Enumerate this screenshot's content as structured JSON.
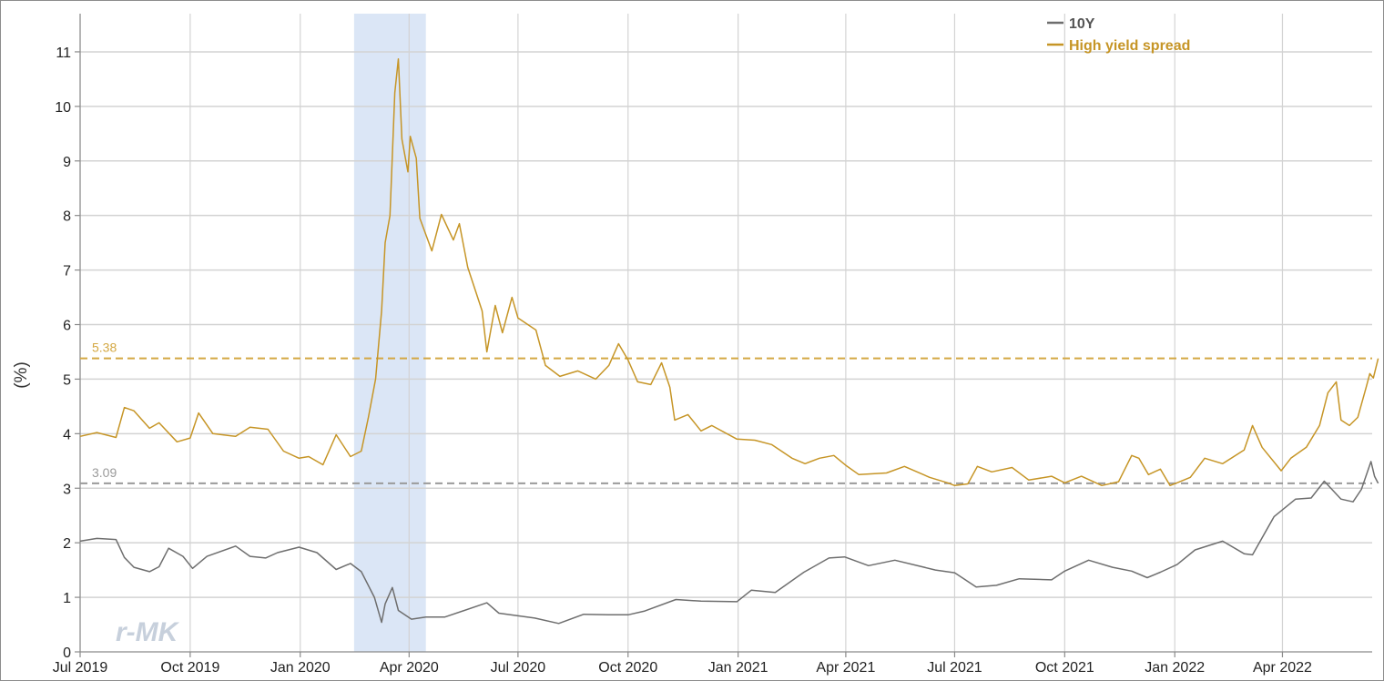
{
  "chart_data": {
    "type": "line",
    "title": "",
    "xlabel": "",
    "ylabel": "(%)",
    "ylim": [
      0,
      11.7
    ],
    "y_ticks": [
      0,
      1,
      2,
      3,
      4,
      5,
      6,
      7,
      8,
      9,
      10,
      11
    ],
    "x_range": [
      "2019-07-01",
      "2022-06-15"
    ],
    "x_ticks": [
      {
        "date": "2019-07-01",
        "label": "Jul 2019"
      },
      {
        "date": "2019-10-01",
        "label": "Oct 2019"
      },
      {
        "date": "2020-01-01",
        "label": "Jan 2020"
      },
      {
        "date": "2020-04-01",
        "label": "Apr 2020"
      },
      {
        "date": "2020-07-01",
        "label": "Jul 2020"
      },
      {
        "date": "2020-10-01",
        "label": "Oct 2020"
      },
      {
        "date": "2021-01-01",
        "label": "Jan 2021"
      },
      {
        "date": "2021-04-01",
        "label": "Apr 2021"
      },
      {
        "date": "2021-07-01",
        "label": "Jul 2021"
      },
      {
        "date": "2021-10-01",
        "label": "Oct 2021"
      },
      {
        "date": "2022-01-01",
        "label": "Jan 2022"
      },
      {
        "date": "2022-04-01",
        "label": "Apr 2022"
      }
    ],
    "grid": true,
    "legend_position": "top-right",
    "recession_band": {
      "start": "2020-02-15",
      "end": "2020-04-15",
      "color": "#dbe6f6"
    },
    "reference_lines": [
      {
        "value": 5.38,
        "label": "5.38",
        "color": "#d4a843"
      },
      {
        "value": 3.09,
        "label": "3.09",
        "color": "#9a9a9a"
      }
    ],
    "series": [
      {
        "name": "10Y",
        "color": "#6e6e6e",
        "points": [
          [
            "2019-07-01",
            2.03
          ],
          [
            "2019-07-15",
            2.08
          ],
          [
            "2019-07-31",
            2.06
          ],
          [
            "2019-08-07",
            1.73
          ],
          [
            "2019-08-15",
            1.55
          ],
          [
            "2019-08-28",
            1.47
          ],
          [
            "2019-09-05",
            1.56
          ],
          [
            "2019-09-13",
            1.9
          ],
          [
            "2019-09-25",
            1.75
          ],
          [
            "2019-10-03",
            1.53
          ],
          [
            "2019-10-15",
            1.75
          ],
          [
            "2019-11-08",
            1.94
          ],
          [
            "2019-11-20",
            1.75
          ],
          [
            "2019-12-03",
            1.72
          ],
          [
            "2019-12-13",
            1.82
          ],
          [
            "2019-12-31",
            1.92
          ],
          [
            "2020-01-15",
            1.82
          ],
          [
            "2020-01-31",
            1.51
          ],
          [
            "2020-02-12",
            1.62
          ],
          [
            "2020-02-21",
            1.47
          ],
          [
            "2020-03-03",
            1.0
          ],
          [
            "2020-03-09",
            0.54
          ],
          [
            "2020-03-12",
            0.88
          ],
          [
            "2020-03-18",
            1.18
          ],
          [
            "2020-03-23",
            0.76
          ],
          [
            "2020-04-03",
            0.6
          ],
          [
            "2020-04-15",
            0.64
          ],
          [
            "2020-05-01",
            0.64
          ],
          [
            "2020-06-05",
            0.9
          ],
          [
            "2020-06-15",
            0.71
          ],
          [
            "2020-07-15",
            0.62
          ],
          [
            "2020-08-04",
            0.52
          ],
          [
            "2020-08-25",
            0.69
          ],
          [
            "2020-09-15",
            0.68
          ],
          [
            "2020-10-01",
            0.68
          ],
          [
            "2020-10-15",
            0.75
          ],
          [
            "2020-11-10",
            0.96
          ],
          [
            "2020-12-01",
            0.93
          ],
          [
            "2020-12-31",
            0.92
          ],
          [
            "2021-01-12",
            1.13
          ],
          [
            "2021-02-01",
            1.09
          ],
          [
            "2021-02-25",
            1.46
          ],
          [
            "2021-03-18",
            1.72
          ],
          [
            "2021-03-31",
            1.74
          ],
          [
            "2021-04-20",
            1.58
          ],
          [
            "2021-05-12",
            1.68
          ],
          [
            "2021-06-15",
            1.5
          ],
          [
            "2021-07-01",
            1.45
          ],
          [
            "2021-07-19",
            1.19
          ],
          [
            "2021-08-05",
            1.22
          ],
          [
            "2021-08-24",
            1.34
          ],
          [
            "2021-09-20",
            1.32
          ],
          [
            "2021-10-01",
            1.48
          ],
          [
            "2021-10-21",
            1.68
          ],
          [
            "2021-11-10",
            1.55
          ],
          [
            "2021-11-26",
            1.48
          ],
          [
            "2021-12-09",
            1.36
          ],
          [
            "2021-12-20",
            1.46
          ],
          [
            "2022-01-03",
            1.6
          ],
          [
            "2022-01-18",
            1.87
          ],
          [
            "2022-02-10",
            2.03
          ],
          [
            "2022-02-28",
            1.8
          ],
          [
            "2022-03-07",
            1.78
          ],
          [
            "2022-03-25",
            2.48
          ],
          [
            "2022-04-12",
            2.8
          ],
          [
            "2022-04-25",
            2.82
          ],
          [
            "2022-05-06",
            3.13
          ],
          [
            "2022-05-20",
            2.8
          ],
          [
            "2022-05-30",
            2.75
          ],
          [
            "2022-06-06",
            2.98
          ],
          [
            "2022-06-14",
            3.49
          ],
          [
            "2022-06-17",
            3.22
          ],
          [
            "2022-06-20",
            3.09
          ]
        ]
      },
      {
        "name": "High yield spread",
        "color": "#c69526",
        "points": [
          [
            "2019-07-01",
            3.95
          ],
          [
            "2019-07-15",
            4.02
          ],
          [
            "2019-07-31",
            3.93
          ],
          [
            "2019-08-07",
            4.48
          ],
          [
            "2019-08-15",
            4.42
          ],
          [
            "2019-08-28",
            4.1
          ],
          [
            "2019-09-05",
            4.2
          ],
          [
            "2019-09-20",
            3.85
          ],
          [
            "2019-10-01",
            3.92
          ],
          [
            "2019-10-08",
            4.38
          ],
          [
            "2019-10-20",
            4.0
          ],
          [
            "2019-11-08",
            3.95
          ],
          [
            "2019-11-20",
            4.12
          ],
          [
            "2019-12-05",
            4.08
          ],
          [
            "2019-12-18",
            3.68
          ],
          [
            "2019-12-31",
            3.55
          ],
          [
            "2020-01-08",
            3.58
          ],
          [
            "2020-01-20",
            3.43
          ],
          [
            "2020-01-31",
            3.98
          ],
          [
            "2020-02-12",
            3.58
          ],
          [
            "2020-02-21",
            3.68
          ],
          [
            "2020-02-27",
            4.3
          ],
          [
            "2020-03-04",
            5.0
          ],
          [
            "2020-03-09",
            6.25
          ],
          [
            "2020-03-12",
            7.5
          ],
          [
            "2020-03-16",
            8.0
          ],
          [
            "2020-03-20",
            10.25
          ],
          [
            "2020-03-23",
            10.87
          ],
          [
            "2020-03-26",
            9.4
          ],
          [
            "2020-03-31",
            8.8
          ],
          [
            "2020-04-02",
            9.45
          ],
          [
            "2020-04-07",
            9.05
          ],
          [
            "2020-04-10",
            7.95
          ],
          [
            "2020-04-20",
            7.35
          ],
          [
            "2020-04-28",
            8.02
          ],
          [
            "2020-05-08",
            7.55
          ],
          [
            "2020-05-13",
            7.85
          ],
          [
            "2020-05-20",
            7.05
          ],
          [
            "2020-06-01",
            6.25
          ],
          [
            "2020-06-05",
            5.5
          ],
          [
            "2020-06-12",
            6.35
          ],
          [
            "2020-06-18",
            5.85
          ],
          [
            "2020-06-26",
            6.5
          ],
          [
            "2020-07-01",
            6.12
          ],
          [
            "2020-07-16",
            5.9
          ],
          [
            "2020-07-24",
            5.25
          ],
          [
            "2020-08-05",
            5.05
          ],
          [
            "2020-08-20",
            5.15
          ],
          [
            "2020-09-04",
            5.0
          ],
          [
            "2020-09-15",
            5.25
          ],
          [
            "2020-09-23",
            5.65
          ],
          [
            "2020-10-01",
            5.35
          ],
          [
            "2020-10-09",
            4.95
          ],
          [
            "2020-10-20",
            4.9
          ],
          [
            "2020-10-29",
            5.3
          ],
          [
            "2020-11-05",
            4.85
          ],
          [
            "2020-11-09",
            4.25
          ],
          [
            "2020-11-20",
            4.35
          ],
          [
            "2020-12-01",
            4.05
          ],
          [
            "2020-12-10",
            4.15
          ],
          [
            "2020-12-31",
            3.9
          ],
          [
            "2021-01-15",
            3.88
          ],
          [
            "2021-01-29",
            3.8
          ],
          [
            "2021-02-15",
            3.55
          ],
          [
            "2021-02-26",
            3.45
          ],
          [
            "2021-03-10",
            3.55
          ],
          [
            "2021-03-22",
            3.6
          ],
          [
            "2021-04-01",
            3.42
          ],
          [
            "2021-04-12",
            3.25
          ],
          [
            "2021-05-05",
            3.28
          ],
          [
            "2021-05-20",
            3.4
          ],
          [
            "2021-06-10",
            3.2
          ],
          [
            "2021-06-25",
            3.1
          ],
          [
            "2021-07-01",
            3.05
          ],
          [
            "2021-07-12",
            3.08
          ],
          [
            "2021-07-20",
            3.4
          ],
          [
            "2021-08-01",
            3.3
          ],
          [
            "2021-08-18",
            3.38
          ],
          [
            "2021-09-01",
            3.15
          ],
          [
            "2021-09-20",
            3.22
          ],
          [
            "2021-10-01",
            3.1
          ],
          [
            "2021-10-15",
            3.22
          ],
          [
            "2021-11-01",
            3.05
          ],
          [
            "2021-11-15",
            3.12
          ],
          [
            "2021-11-26",
            3.6
          ],
          [
            "2021-12-02",
            3.55
          ],
          [
            "2021-12-10",
            3.25
          ],
          [
            "2021-12-20",
            3.35
          ],
          [
            "2021-12-28",
            3.05
          ],
          [
            "2022-01-03",
            3.1
          ],
          [
            "2022-01-14",
            3.2
          ],
          [
            "2022-01-26",
            3.55
          ],
          [
            "2022-02-10",
            3.45
          ],
          [
            "2022-02-28",
            3.7
          ],
          [
            "2022-03-07",
            4.15
          ],
          [
            "2022-03-15",
            3.75
          ],
          [
            "2022-03-31",
            3.32
          ],
          [
            "2022-04-08",
            3.55
          ],
          [
            "2022-04-21",
            3.75
          ],
          [
            "2022-05-02",
            4.15
          ],
          [
            "2022-05-09",
            4.75
          ],
          [
            "2022-05-16",
            4.95
          ],
          [
            "2022-05-20",
            4.25
          ],
          [
            "2022-05-27",
            4.15
          ],
          [
            "2022-06-03",
            4.3
          ],
          [
            "2022-06-10",
            4.85
          ],
          [
            "2022-06-13",
            5.1
          ],
          [
            "2022-06-16",
            5.02
          ],
          [
            "2022-06-20",
            5.38
          ]
        ]
      }
    ]
  },
  "watermark": "r-MK"
}
